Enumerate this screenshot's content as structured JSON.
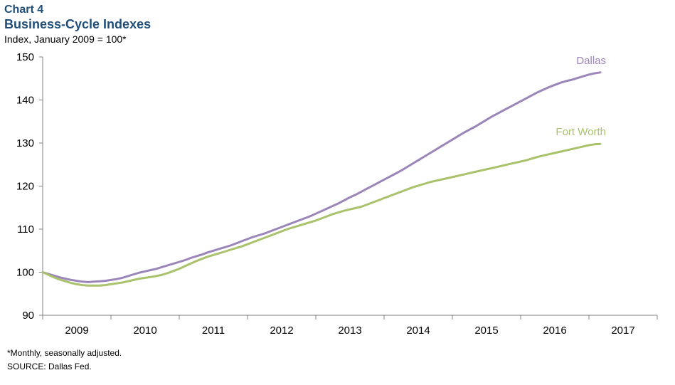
{
  "header": {
    "chart_label": "Chart 4",
    "title": "Business-Cycle Indexes",
    "subtitle": "Index, January 2009 = 100*"
  },
  "footer": {
    "note": "*Monthly, seasonally adjusted.",
    "source": "SOURCE: Dallas Fed."
  },
  "colors": {
    "dallas": "#9b85b9",
    "fort_worth": "#a9c26b",
    "axis": "#808080"
  },
  "chart_data": {
    "type": "line",
    "title": "Business-Cycle Indexes",
    "xlabel": "",
    "ylabel": "Index, January 2009 = 100*",
    "x_start": "2009-01",
    "x_end": "2017-03",
    "x_tick_labels": [
      "2009",
      "2010",
      "2011",
      "2012",
      "2013",
      "2014",
      "2015",
      "2016",
      "2017"
    ],
    "y_ticks": [
      90,
      100,
      110,
      120,
      130,
      140,
      150
    ],
    "ylim": [
      90,
      150
    ],
    "grid": false,
    "legend": "inline labels at line ends",
    "series": [
      {
        "name": "Dallas",
        "x": [
          "2009-01",
          "2009-02",
          "2009-03",
          "2009-04",
          "2009-05",
          "2009-06",
          "2009-07",
          "2009-08",
          "2009-09",
          "2009-10",
          "2009-11",
          "2009-12",
          "2010-01",
          "2010-02",
          "2010-03",
          "2010-04",
          "2010-05",
          "2010-06",
          "2010-07",
          "2010-08",
          "2010-09",
          "2010-10",
          "2010-11",
          "2010-12",
          "2011-01",
          "2011-02",
          "2011-03",
          "2011-04",
          "2011-05",
          "2011-06",
          "2011-07",
          "2011-08",
          "2011-09",
          "2011-10",
          "2011-11",
          "2011-12",
          "2012-01",
          "2012-02",
          "2012-03",
          "2012-04",
          "2012-05",
          "2012-06",
          "2012-07",
          "2012-08",
          "2012-09",
          "2012-10",
          "2012-11",
          "2012-12",
          "2013-01",
          "2013-02",
          "2013-03",
          "2013-04",
          "2013-05",
          "2013-06",
          "2013-07",
          "2013-08",
          "2013-09",
          "2013-10",
          "2013-11",
          "2013-12",
          "2014-01",
          "2014-02",
          "2014-03",
          "2014-04",
          "2014-05",
          "2014-06",
          "2014-07",
          "2014-08",
          "2014-09",
          "2014-10",
          "2014-11",
          "2014-12",
          "2015-01",
          "2015-02",
          "2015-03",
          "2015-04",
          "2015-05",
          "2015-06",
          "2015-07",
          "2015-08",
          "2015-09",
          "2015-10",
          "2015-11",
          "2015-12",
          "2016-01",
          "2016-02",
          "2016-03",
          "2016-04",
          "2016-05",
          "2016-06",
          "2016-07",
          "2016-08",
          "2016-09",
          "2016-10",
          "2016-11",
          "2016-12",
          "2017-01",
          "2017-02",
          "2017-03"
        ],
        "values": [
          100,
          99.6,
          99.2,
          98.8,
          98.5,
          98.2,
          98.0,
          97.8,
          97.7,
          97.8,
          97.9,
          98.0,
          98.2,
          98.4,
          98.7,
          99.1,
          99.5,
          99.9,
          100.2,
          100.5,
          100.8,
          101.2,
          101.6,
          102.0,
          102.4,
          102.8,
          103.3,
          103.7,
          104.1,
          104.6,
          105.0,
          105.4,
          105.8,
          106.2,
          106.7,
          107.2,
          107.7,
          108.2,
          108.6,
          109.0,
          109.5,
          110.0,
          110.5,
          111.0,
          111.5,
          112.0,
          112.5,
          113.0,
          113.6,
          114.2,
          114.8,
          115.4,
          116.0,
          116.7,
          117.4,
          118.0,
          118.7,
          119.4,
          120.1,
          120.8,
          121.5,
          122.2,
          122.9,
          123.6,
          124.4,
          125.2,
          126.0,
          126.8,
          127.6,
          128.4,
          129.2,
          130.0,
          130.8,
          131.6,
          132.4,
          133.1,
          133.8,
          134.6,
          135.4,
          136.2,
          136.9,
          137.6,
          138.3,
          139.0,
          139.7,
          140.4,
          141.1,
          141.8,
          142.4,
          143.0,
          143.5,
          144.0,
          144.4,
          144.7,
          145.1,
          145.5,
          145.9,
          146.2,
          146.4
        ]
      },
      {
        "name": "Fort Worth",
        "x": [
          "2009-01",
          "2009-02",
          "2009-03",
          "2009-04",
          "2009-05",
          "2009-06",
          "2009-07",
          "2009-08",
          "2009-09",
          "2009-10",
          "2009-11",
          "2009-12",
          "2010-01",
          "2010-02",
          "2010-03",
          "2010-04",
          "2010-05",
          "2010-06",
          "2010-07",
          "2010-08",
          "2010-09",
          "2010-10",
          "2010-11",
          "2010-12",
          "2011-01",
          "2011-02",
          "2011-03",
          "2011-04",
          "2011-05",
          "2011-06",
          "2011-07",
          "2011-08",
          "2011-09",
          "2011-10",
          "2011-11",
          "2011-12",
          "2012-01",
          "2012-02",
          "2012-03",
          "2012-04",
          "2012-05",
          "2012-06",
          "2012-07",
          "2012-08",
          "2012-09",
          "2012-10",
          "2012-11",
          "2012-12",
          "2013-01",
          "2013-02",
          "2013-03",
          "2013-04",
          "2013-05",
          "2013-06",
          "2013-07",
          "2013-08",
          "2013-09",
          "2013-10",
          "2013-11",
          "2013-12",
          "2014-01",
          "2014-02",
          "2014-03",
          "2014-04",
          "2014-05",
          "2014-06",
          "2014-07",
          "2014-08",
          "2014-09",
          "2014-10",
          "2014-11",
          "2014-12",
          "2015-01",
          "2015-02",
          "2015-03",
          "2015-04",
          "2015-05",
          "2015-06",
          "2015-07",
          "2015-08",
          "2015-09",
          "2015-10",
          "2015-11",
          "2015-12",
          "2016-01",
          "2016-02",
          "2016-03",
          "2016-04",
          "2016-05",
          "2016-06",
          "2016-07",
          "2016-08",
          "2016-09",
          "2016-10",
          "2016-11",
          "2016-12",
          "2017-01",
          "2017-02",
          "2017-03"
        ],
        "values": [
          100,
          99.4,
          98.8,
          98.3,
          97.9,
          97.5,
          97.2,
          97.0,
          96.9,
          96.9,
          96.9,
          97.0,
          97.2,
          97.4,
          97.6,
          97.9,
          98.2,
          98.5,
          98.7,
          98.9,
          99.1,
          99.4,
          99.8,
          100.3,
          100.8,
          101.4,
          102.0,
          102.6,
          103.1,
          103.6,
          104.0,
          104.4,
          104.8,
          105.2,
          105.6,
          106.0,
          106.5,
          107.0,
          107.5,
          108.0,
          108.5,
          109.0,
          109.5,
          110.0,
          110.4,
          110.8,
          111.2,
          111.6,
          112.0,
          112.5,
          113.0,
          113.5,
          113.9,
          114.3,
          114.6,
          114.9,
          115.2,
          115.7,
          116.2,
          116.7,
          117.2,
          117.7,
          118.2,
          118.7,
          119.2,
          119.7,
          120.1,
          120.5,
          120.9,
          121.2,
          121.5,
          121.8,
          122.1,
          122.4,
          122.7,
          123.0,
          123.3,
          123.6,
          123.9,
          124.2,
          124.5,
          124.8,
          125.1,
          125.4,
          125.7,
          126.0,
          126.4,
          126.8,
          127.1,
          127.4,
          127.7,
          128.0,
          128.3,
          128.6,
          128.9,
          129.2,
          129.5,
          129.7,
          129.8
        ]
      }
    ]
  }
}
